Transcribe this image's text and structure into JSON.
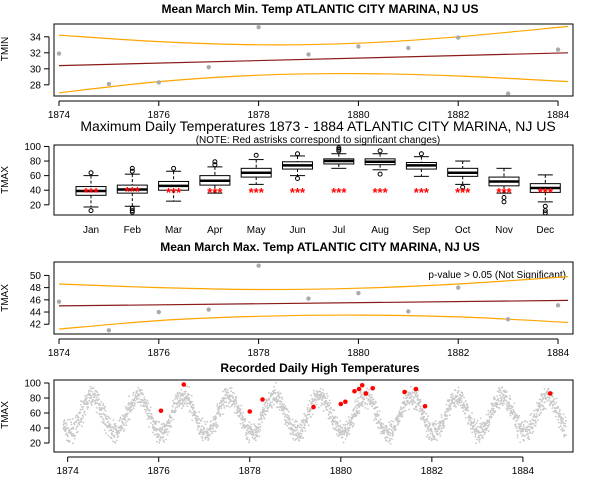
{
  "chart_data": [
    {
      "type": "scatter",
      "title": "Mean March Min. Temp ATLANTIC CITY MARINA, NJ US",
      "ylabel": "TMIN",
      "xlim": [
        1873.9,
        1884.3
      ],
      "ylim": [
        26.6,
        35.6
      ],
      "xticks": [
        1874,
        1876,
        1878,
        1880,
        1882,
        1884
      ],
      "yticks": [
        28,
        30,
        32,
        34
      ],
      "points": [
        {
          "x": 1874,
          "y": 31.9
        },
        {
          "x": 1875,
          "y": 28.1
        },
        {
          "x": 1876,
          "y": 28.3
        },
        {
          "x": 1877,
          "y": 30.2
        },
        {
          "x": 1878,
          "y": 35.2
        },
        {
          "x": 1879,
          "y": 31.8
        },
        {
          "x": 1880,
          "y": 32.8
        },
        {
          "x": 1881,
          "y": 32.6
        },
        {
          "x": 1882,
          "y": 33.9
        },
        {
          "x": 1883,
          "y": 26.9
        },
        {
          "x": 1884,
          "y": 32.4
        }
      ],
      "trend": [
        [
          1874,
          30.4
        ],
        [
          1884.2,
          32.0
        ]
      ],
      "upper_band": [
        [
          1874,
          34.2
        ],
        [
          1876,
          33.4
        ],
        [
          1878,
          33.0
        ],
        [
          1880,
          33.2
        ],
        [
          1882,
          34.0
        ],
        [
          1884.2,
          35.3
        ]
      ],
      "lower_band": [
        [
          1874,
          27.0
        ],
        [
          1876,
          28.4
        ],
        [
          1878,
          29.2
        ],
        [
          1880,
          29.4
        ],
        [
          1882,
          29.1
        ],
        [
          1884.2,
          28.4
        ]
      ],
      "colors": {
        "points": "#aaaaaa",
        "trend": "#8b1a1a",
        "band": "#ffa500"
      }
    },
    {
      "type": "box",
      "title": "Maximum Daily Temperatures 1873 - 1884 ATLANTIC CITY MARINA, NJ US",
      "subtitle": "(NOTE: Red astrisks correspond to signficant changes)",
      "ylabel": "TMAX",
      "ylim": [
        6,
        102
      ],
      "yticks": [
        20,
        40,
        60,
        80,
        100
      ],
      "categories": [
        "Jan",
        "Feb",
        "Mar",
        "Apr",
        "May",
        "Jun",
        "Jul",
        "Aug",
        "Sep",
        "Oct",
        "Nov",
        "Dec"
      ],
      "boxes": [
        {
          "min": 17,
          "q1": 33,
          "median": 39,
          "q3": 45,
          "max": 60,
          "outliers": [
            12,
            64
          ]
        },
        {
          "min": 18,
          "q1": 36,
          "median": 41,
          "q3": 47,
          "max": 62,
          "outliers": [
            10,
            12,
            15,
            66,
            70
          ]
        },
        {
          "min": 25,
          "q1": 40,
          "median": 46,
          "q3": 52,
          "max": 66,
          "outliers": [
            70
          ]
        },
        {
          "min": 36,
          "q1": 47,
          "median": 53,
          "q3": 60,
          "max": 72,
          "outliers": [
            75,
            79
          ]
        },
        {
          "min": 48,
          "q1": 58,
          "median": 64,
          "q3": 70,
          "max": 82,
          "outliers": [
            88
          ]
        },
        {
          "min": 60,
          "q1": 69,
          "median": 74,
          "q3": 79,
          "max": 87,
          "outliers": [
            56,
            90
          ]
        },
        {
          "min": 70,
          "q1": 76,
          "median": 80,
          "q3": 83,
          "max": 90,
          "outliers": [
            94,
            96,
            98
          ]
        },
        {
          "min": 68,
          "q1": 75,
          "median": 79,
          "q3": 83,
          "max": 90,
          "outliers": [
            62,
            94
          ]
        },
        {
          "min": 59,
          "q1": 69,
          "median": 74,
          "q3": 78,
          "max": 86,
          "outliers": [
            90
          ]
        },
        {
          "min": 48,
          "q1": 59,
          "median": 64,
          "q3": 70,
          "max": 80,
          "outliers": [
            44
          ]
        },
        {
          "min": 36,
          "q1": 46,
          "median": 52,
          "q3": 58,
          "max": 70,
          "outliers": [
            30,
            24
          ]
        },
        {
          "min": 24,
          "q1": 37,
          "median": 43,
          "q3": 49,
          "max": 61,
          "outliers": [
            18,
            12,
            9
          ]
        }
      ],
      "significant_marker": "***",
      "significant": [
        true,
        true,
        true,
        true,
        true,
        true,
        true,
        true,
        true,
        true,
        true,
        true
      ],
      "marker_value": [
        40,
        42,
        40,
        40,
        40,
        40,
        40,
        40,
        40,
        40,
        40,
        40
      ],
      "colors": {
        "box": "#000000",
        "marker": "#ff0000",
        "outlier": "#000000"
      }
    },
    {
      "type": "scatter",
      "title": "Mean March Max. Temp ATLANTIC CITY MARINA, NJ US",
      "annotation": "p-value > 0.05 (Not Significant)",
      "ylabel": "TMAX",
      "xlim": [
        1873.9,
        1884.3
      ],
      "ylim": [
        40.4,
        52.2
      ],
      "xticks": [
        1874,
        1876,
        1878,
        1880,
        1882,
        1884
      ],
      "yticks": [
        42,
        44,
        46,
        48,
        50
      ],
      "points": [
        {
          "x": 1874,
          "y": 45.7
        },
        {
          "x": 1875,
          "y": 41.0
        },
        {
          "x": 1876,
          "y": 44.0
        },
        {
          "x": 1877,
          "y": 44.4
        },
        {
          "x": 1878,
          "y": 51.6
        },
        {
          "x": 1879,
          "y": 46.2
        },
        {
          "x": 1880,
          "y": 47.1
        },
        {
          "x": 1881,
          "y": 44.1
        },
        {
          "x": 1882,
          "y": 48.0
        },
        {
          "x": 1883,
          "y": 42.8
        },
        {
          "x": 1884,
          "y": 45.1
        }
      ],
      "trend": [
        [
          1874,
          45.0
        ],
        [
          1884.2,
          45.9
        ]
      ],
      "upper_band": [
        [
          1874,
          48.6
        ],
        [
          1876,
          48.0
        ],
        [
          1878,
          47.7
        ],
        [
          1880,
          47.9
        ],
        [
          1882,
          48.6
        ],
        [
          1884.2,
          49.8
        ]
      ],
      "lower_band": [
        [
          1874,
          41.2
        ],
        [
          1876,
          42.6
        ],
        [
          1878,
          43.3
        ],
        [
          1880,
          43.5
        ],
        [
          1882,
          43.2
        ],
        [
          1884.2,
          42.3
        ]
      ],
      "colors": {
        "points": "#aaaaaa",
        "trend": "#8b1a1a",
        "band": "#ffa500"
      }
    },
    {
      "type": "scatter",
      "title": "Recorded Daily High Temperatures",
      "ylabel": "TMAX",
      "xlim": [
        1873.7,
        1885.1
      ],
      "ylim": [
        8,
        104
      ],
      "xticks": [
        1874,
        1876,
        1878,
        1880,
        1882,
        1884
      ],
      "yticks": [
        20,
        40,
        60,
        80,
        100
      ],
      "seasonal": {
        "start": 1873.9,
        "end": 1884.95,
        "mean": 58,
        "amplitude": 24,
        "peak_offset": 0.54
      },
      "highlights": [
        {
          "x": 1876.05,
          "y": 63
        },
        {
          "x": 1876.55,
          "y": 98
        },
        {
          "x": 1878.0,
          "y": 62
        },
        {
          "x": 1878.28,
          "y": 78
        },
        {
          "x": 1879.4,
          "y": 68
        },
        {
          "x": 1880.0,
          "y": 72
        },
        {
          "x": 1880.1,
          "y": 75
        },
        {
          "x": 1880.3,
          "y": 89
        },
        {
          "x": 1880.4,
          "y": 92
        },
        {
          "x": 1880.47,
          "y": 97
        },
        {
          "x": 1880.55,
          "y": 86
        },
        {
          "x": 1880.7,
          "y": 93
        },
        {
          "x": 1881.4,
          "y": 88
        },
        {
          "x": 1881.65,
          "y": 92
        },
        {
          "x": 1881.85,
          "y": 69
        },
        {
          "x": 1884.6,
          "y": 86
        }
      ],
      "colors": {
        "daily": "#c8c8c8",
        "highlight": "#ff0000"
      }
    }
  ]
}
